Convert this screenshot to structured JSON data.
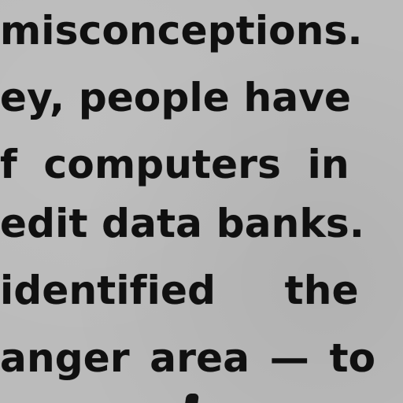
{
  "document": {
    "lines": [
      "misconceptions.",
      "ey, people have",
      "f computers in",
      "edit data banks.",
      "identified the",
      "anger area — to"
    ]
  }
}
